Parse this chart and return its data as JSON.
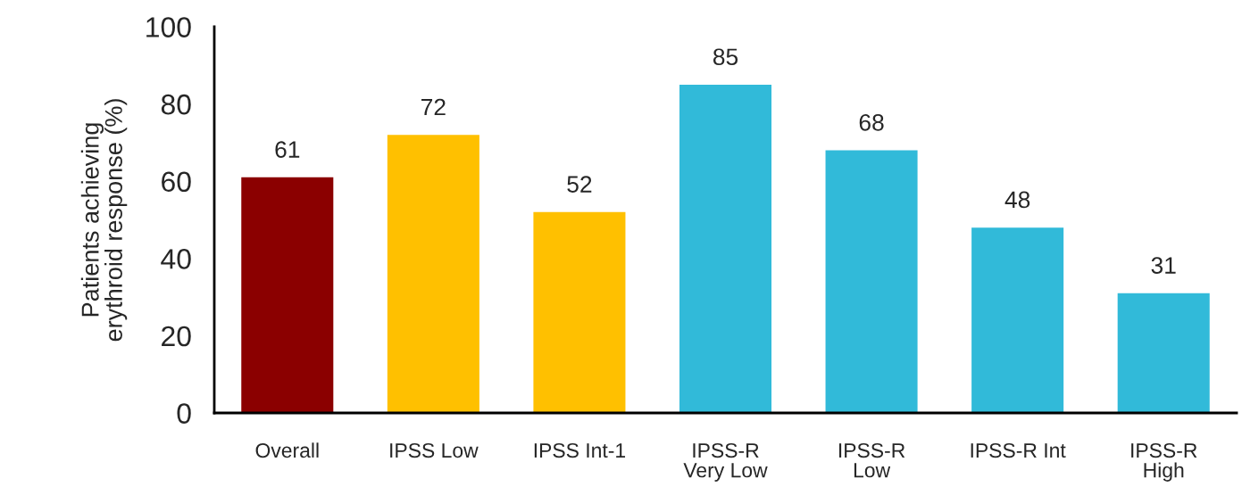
{
  "chart_data": {
    "type": "bar",
    "ylabel": "Patients achieving\nerythroid response (%)",
    "categories": [
      "Overall",
      "IPSS Low",
      "IPSS Int-1",
      "IPSS-R\nVery Low",
      "IPSS-R\nLow",
      "IPSS-R Int",
      "IPSS-R\nHigh"
    ],
    "values": [
      61,
      72,
      52,
      85,
      68,
      48,
      31
    ],
    "colors": [
      "#8b0000",
      "#ffc000",
      "#ffc000",
      "#31bad9",
      "#31bad9",
      "#31bad9",
      "#31bad9"
    ],
    "ylim": [
      0,
      100
    ],
    "yticks": [
      0,
      20,
      40,
      60,
      80,
      100
    ],
    "data_labels": true,
    "grid": false,
    "legend": false
  }
}
